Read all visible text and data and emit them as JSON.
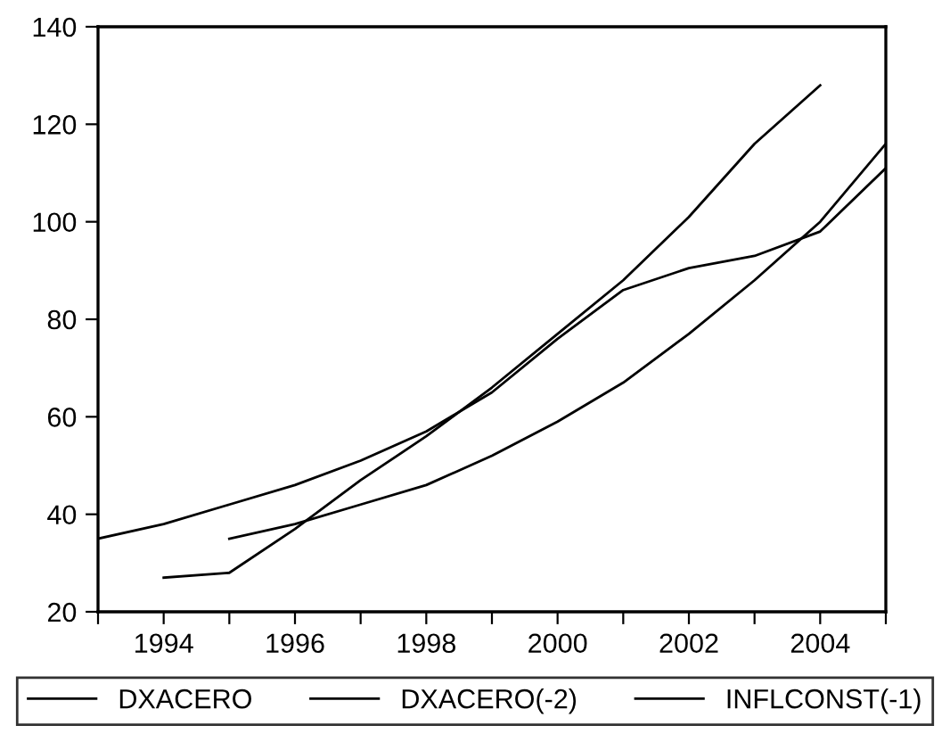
{
  "chart_data": {
    "type": "line",
    "series": [
      {
        "name": "DXACERO",
        "color": "#000000",
        "x": [
          1994,
          1995,
          1996,
          1997,
          1998,
          1999,
          2000,
          2001,
          2002,
          2003,
          2004
        ],
        "values": [
          27,
          28,
          37,
          47,
          56,
          66,
          77,
          88,
          101,
          116,
          128
        ]
      },
      {
        "name": "DXACERO(-2)",
        "color": "#000000",
        "x": [
          1995,
          1996,
          1997,
          1998,
          1999,
          2000,
          2001,
          2002,
          2003,
          2004,
          2005
        ],
        "values": [
          35,
          38,
          42,
          46,
          52,
          59,
          67,
          77,
          88,
          100,
          116
        ]
      },
      {
        "name": "INFLCONST(-1)",
        "color": "#000000",
        "x": [
          1993,
          1994,
          1995,
          1996,
          1997,
          1998,
          1999,
          2000,
          2001,
          2002,
          2003,
          2004,
          2005
        ],
        "values": [
          35,
          38,
          42,
          46,
          51,
          57,
          65,
          76,
          86,
          90.5,
          93,
          98,
          111
        ]
      }
    ],
    "xlim": [
      1993,
      2005
    ],
    "xticks": [
      {
        "value": 1993,
        "label": null
      },
      1994,
      {
        "value": 1995,
        "label": null
      },
      1996,
      {
        "value": 1997,
        "label": null
      },
      1998,
      {
        "value": 1999,
        "label": null
      },
      2000,
      {
        "value": 2001,
        "label": null
      },
      2002,
      {
        "value": 2003,
        "label": null
      },
      2004,
      {
        "value": 2005,
        "label": null
      }
    ],
    "ylim": [
      20,
      140
    ],
    "yticks": [
      20,
      40,
      60,
      80,
      100,
      120,
      140
    ],
    "grid": false,
    "legend": "bottom",
    "marker": "none",
    "line_style": "solid"
  }
}
